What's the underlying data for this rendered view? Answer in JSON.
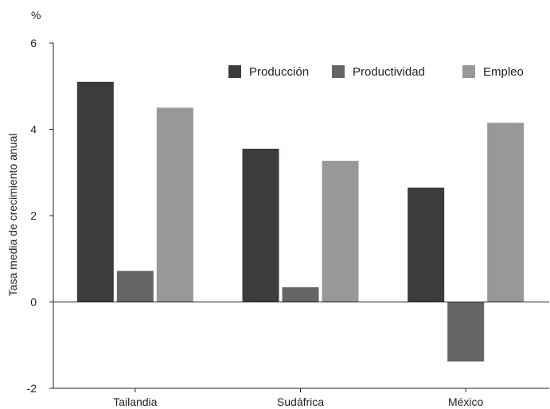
{
  "chart_data": {
    "type": "bar",
    "title": "",
    "unit_label": "%",
    "ylabel": "Tasa media de crecimiento anual",
    "xlabel": "",
    "ylim": [
      -2,
      6
    ],
    "yticks": [
      -2,
      0,
      2,
      4,
      6
    ],
    "grid": false,
    "legend_position": "top-right",
    "categories": [
      "Tailandia",
      "Sudáfrica",
      "México"
    ],
    "series": [
      {
        "name": "Producción",
        "color": "#3d3b3c",
        "values": [
          5.1,
          3.55,
          2.65
        ]
      },
      {
        "name": "Productividad",
        "color": "#666464",
        "values": [
          0.72,
          0.34,
          -1.38
        ]
      },
      {
        "name": "Empleo",
        "color": "#999797",
        "values": [
          4.5,
          3.27,
          4.15
        ]
      }
    ]
  }
}
